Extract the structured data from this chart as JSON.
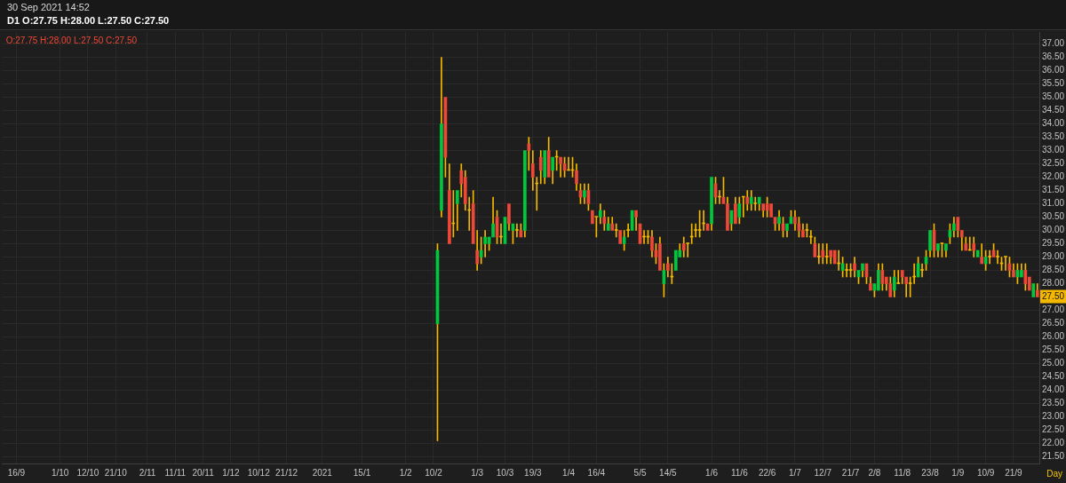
{
  "chart_data": {
    "type": "candlestick",
    "title": "30 Sep 2021 14:52",
    "subtitle": "D1 O:27.75 H:28.00 L:27.50 C:27.50",
    "categories": [
      null,
      null,
      null,
      "16/9",
      null,
      null,
      null,
      null,
      null,
      null,
      null,
      null,
      null,
      null,
      "1/10",
      null,
      null,
      null,
      null,
      null,
      null,
      "12/10",
      null,
      null,
      null,
      null,
      null,
      null,
      "21/10",
      null,
      null,
      null,
      null,
      null,
      null,
      null,
      "2/11",
      null,
      null,
      null,
      null,
      null,
      null,
      "11/11",
      null,
      null,
      null,
      null,
      null,
      null,
      "20/11",
      null,
      null,
      null,
      null,
      null,
      null,
      "1/12",
      null,
      null,
      null,
      null,
      null,
      null,
      "10/12",
      null,
      null,
      null,
      null,
      null,
      null,
      "21/12",
      null,
      null,
      null,
      null,
      null,
      null,
      null,
      null,
      "2021",
      null,
      null,
      null,
      null,
      null,
      null,
      null,
      null,
      null,
      "15/1",
      null,
      null,
      null,
      null,
      null,
      null,
      null,
      null,
      null,
      null,
      "1/2",
      null,
      null,
      null,
      null,
      null,
      null,
      "10/2",
      null,
      null,
      null,
      null,
      null,
      null,
      null,
      null,
      null,
      null,
      "1/3",
      null,
      null,
      null,
      null,
      null,
      null,
      "10/3",
      null,
      null,
      null,
      null,
      null,
      null,
      "19/3",
      null,
      null,
      null,
      null,
      null,
      null,
      null,
      null,
      "1/4",
      null,
      null,
      null,
      null,
      null,
      null,
      "16/4",
      null,
      null,
      null,
      null,
      null,
      null,
      null,
      null,
      null,
      null,
      "5/5",
      null,
      null,
      null,
      null,
      null,
      null,
      "14/5",
      null,
      null,
      null,
      null,
      null,
      null,
      null,
      null,
      null,
      null,
      "1/6",
      null,
      null,
      null,
      null,
      null,
      null,
      "11/6",
      null,
      null,
      null,
      null,
      null,
      null,
      "22/6",
      null,
      null,
      null,
      null,
      null,
      null,
      "1/7",
      null,
      null,
      null,
      null,
      null,
      null,
      "12/7",
      null,
      null,
      null,
      null,
      null,
      null,
      "21/7",
      null,
      null,
      null,
      null,
      null,
      "2/8",
      null,
      null,
      null,
      null,
      null,
      null,
      "11/8",
      null,
      null,
      null,
      null,
      null,
      null,
      "23/8",
      null,
      null,
      null,
      null,
      null,
      null,
      "1/9",
      null,
      null,
      null,
      null,
      null,
      null,
      "10/9",
      null,
      null,
      null,
      null,
      null,
      null,
      "21/9",
      null,
      null,
      null,
      null,
      null,
      null
    ],
    "series": [
      {
        "color": "#f5b800",
        "ohlc": [
          null,
          null,
          null,
          null,
          null,
          null,
          null,
          null,
          null,
          null,
          null,
          null,
          null,
          null,
          null,
          null,
          null,
          null,
          null,
          null,
          null,
          null,
          null,
          null,
          null,
          null,
          null,
          null,
          null,
          null,
          null,
          null,
          null,
          null,
          null,
          null,
          null,
          null,
          null,
          null,
          null,
          null,
          null,
          null,
          null,
          null,
          null,
          null,
          null,
          null,
          null,
          null,
          null,
          null,
          null,
          null,
          null,
          null,
          null,
          null,
          null,
          null,
          null,
          null,
          null,
          null,
          null,
          null,
          null,
          null,
          null,
          null,
          null,
          null,
          null,
          null,
          null,
          null,
          null,
          null,
          null,
          null,
          null,
          null,
          null,
          null,
          null,
          null,
          null,
          null,
          null,
          null,
          null,
          null,
          null,
          null,
          null,
          null,
          null,
          null,
          null,
          null,
          null,
          null,
          null,
          null,
          null,
          null,
          null,
          [
            26.5,
            29.5,
            22.1,
            29.25
          ],
          [
            30.75,
            36.5,
            30.5,
            34.0
          ],
          [
            35.0,
            35.0,
            32.0,
            32.75
          ],
          [
            31.5,
            32.5,
            29.5,
            29.5
          ],
          [
            30.25,
            31.5,
            29.75,
            30.25
          ],
          [
            31.0,
            31.5,
            30.0,
            31.5
          ],
          [
            32.25,
            32.5,
            31.25,
            31.75
          ],
          [
            32.0,
            32.25,
            30.75,
            31.0
          ],
          [
            30.75,
            31.25,
            30.0,
            30.75
          ],
          [
            31.0,
            31.5,
            29.5,
            29.5
          ],
          [
            29.25,
            30.0,
            28.5,
            28.75
          ],
          [
            29.0,
            29.75,
            28.75,
            29.25
          ],
          [
            29.5,
            30.0,
            29.0,
            29.75
          ],
          [
            29.5,
            29.75,
            29.25,
            29.75
          ],
          [
            29.75,
            31.25,
            29.75,
            30.25
          ],
          [
            30.5,
            30.75,
            29.5,
            29.75
          ],
          [
            29.75,
            30.25,
            29.5,
            29.75
          ],
          [
            29.5,
            30.5,
            29.5,
            30.5
          ],
          [
            31.0,
            31.0,
            30.0,
            30.25
          ],
          [
            30.0,
            30.25,
            29.5,
            30.25
          ],
          [
            30.0,
            30.25,
            29.75,
            30.0
          ],
          [
            30.0,
            30.25,
            29.75,
            29.75
          ],
          [
            30.0,
            33.0,
            29.75,
            33.0
          ],
          [
            33.25,
            33.5,
            32.25,
            33.0
          ],
          [
            32.5,
            33.0,
            31.5,
            32.0
          ],
          [
            31.75,
            32.0,
            30.75,
            31.75
          ],
          [
            32.75,
            33.0,
            31.75,
            32.25
          ],
          [
            32.0,
            33.0,
            31.75,
            33.0
          ],
          [
            33.0,
            33.5,
            32.0,
            32.0
          ],
          [
            32.25,
            32.75,
            31.75,
            32.75
          ],
          [
            32.75,
            33.0,
            32.25,
            32.75
          ],
          [
            32.75,
            32.75,
            32.0,
            32.5
          ],
          [
            32.5,
            32.75,
            32.0,
            32.25
          ],
          [
            32.25,
            32.75,
            32.25,
            32.25
          ],
          [
            32.25,
            32.75,
            32.0,
            32.25
          ],
          [
            32.25,
            32.5,
            31.5,
            31.75
          ],
          [
            31.5,
            31.75,
            31.0,
            31.25
          ],
          [
            31.25,
            31.75,
            31.0,
            31.5
          ],
          [
            31.5,
            31.75,
            30.75,
            31.0
          ],
          [
            30.75,
            30.75,
            30.25,
            30.25
          ],
          [
            30.5,
            30.5,
            29.75,
            30.5
          ],
          [
            30.5,
            31.0,
            30.25,
            30.75
          ],
          [
            30.5,
            30.75,
            30.0,
            30.25
          ],
          [
            30.0,
            30.5,
            30.0,
            30.25
          ],
          [
            30.25,
            30.5,
            30.0,
            30.0
          ],
          [
            30.0,
            30.25,
            29.75,
            30.0
          ],
          [
            30.0,
            30.0,
            29.5,
            29.5
          ],
          [
            29.5,
            30.0,
            29.25,
            29.75
          ],
          [
            30.0,
            30.25,
            29.75,
            30.0
          ],
          [
            30.0,
            30.75,
            30.0,
            30.75
          ],
          [
            30.75,
            30.75,
            30.0,
            30.5
          ],
          [
            30.25,
            30.25,
            29.5,
            29.5
          ],
          [
            29.75,
            30.0,
            29.5,
            29.75
          ],
          [
            29.75,
            30.0,
            29.5,
            29.75
          ],
          [
            29.75,
            30.0,
            29.0,
            29.25
          ],
          [
            29.25,
            29.5,
            28.75,
            29.0
          ],
          [
            29.5,
            29.75,
            28.5,
            28.5
          ],
          [
            28.0,
            28.75,
            27.5,
            28.5
          ],
          [
            28.75,
            29.0,
            28.25,
            28.5
          ],
          [
            28.25,
            28.75,
            28.0,
            28.25
          ],
          [
            28.5,
            29.25,
            28.5,
            29.25
          ],
          [
            29.0,
            29.5,
            29.0,
            29.25
          ],
          [
            29.5,
            29.75,
            29.0,
            29.25
          ],
          [
            29.5,
            29.5,
            29.0,
            29.5
          ],
          [
            29.75,
            30.25,
            29.5,
            29.75
          ],
          [
            30.0,
            30.25,
            29.75,
            30.0
          ],
          [
            30.0,
            30.75,
            29.75,
            30.0
          ],
          [
            30.25,
            30.75,
            30.0,
            30.25
          ],
          [
            30.25,
            30.25,
            30.0,
            30.0
          ],
          [
            30.25,
            32.0,
            30.0,
            32.0
          ],
          [
            31.75,
            32.0,
            31.0,
            31.25
          ],
          [
            31.25,
            31.5,
            31.0,
            31.25
          ],
          [
            31.25,
            32.0,
            31.0,
            31.0
          ],
          [
            31.0,
            31.25,
            30.0,
            30.0
          ],
          [
            30.25,
            30.75,
            30.0,
            30.75
          ],
          [
            31.0,
            31.25,
            30.25,
            30.25
          ],
          [
            30.5,
            31.25,
            30.25,
            31.0
          ],
          [
            31.25,
            31.25,
            30.5,
            31.25
          ],
          [
            31.25,
            31.5,
            30.75,
            31.0
          ],
          [
            31.0,
            31.5,
            30.75,
            31.25
          ],
          [
            31.0,
            31.25,
            30.75,
            31.0
          ],
          [
            31.0,
            31.25,
            30.75,
            31.25
          ],
          [
            31.0,
            31.0,
            30.5,
            30.75
          ],
          [
            31.0,
            31.25,
            30.5,
            30.75
          ],
          [
            31.0,
            31.0,
            30.5,
            30.5
          ],
          [
            30.5,
            30.5,
            30.0,
            30.25
          ],
          [
            30.25,
            30.75,
            30.0,
            30.5
          ],
          [
            30.25,
            30.5,
            29.75,
            30.0
          ],
          [
            30.0,
            30.25,
            29.75,
            30.25
          ],
          [
            30.25,
            30.75,
            30.25,
            30.5
          ],
          [
            30.5,
            30.75,
            30.0,
            30.25
          ],
          [
            30.25,
            30.5,
            29.75,
            30.0
          ],
          [
            30.0,
            30.25,
            29.75,
            29.75
          ],
          [
            30.0,
            30.25,
            29.75,
            30.0
          ],
          [
            29.75,
            30.0,
            29.5,
            29.75
          ],
          [
            29.5,
            29.75,
            29.0,
            29.0
          ],
          [
            29.0,
            29.5,
            28.75,
            29.0
          ],
          [
            29.25,
            29.5,
            28.75,
            29.0
          ],
          [
            29.0,
            29.5,
            28.75,
            29.0
          ],
          [
            29.25,
            29.25,
            28.75,
            29.0
          ],
          [
            29.25,
            29.25,
            28.75,
            28.75
          ],
          [
            28.75,
            29.25,
            28.5,
            28.75
          ],
          [
            28.5,
            29.0,
            28.25,
            28.75
          ],
          [
            28.5,
            28.75,
            28.25,
            28.5
          ],
          [
            28.5,
            28.75,
            28.25,
            28.5
          ],
          [
            28.75,
            29.0,
            28.25,
            28.5
          ],
          [
            28.25,
            28.5,
            28.0,
            28.5
          ],
          [
            28.5,
            28.75,
            28.25,
            28.75
          ],
          [
            28.75,
            28.75,
            28.0,
            28.25
          ],
          [
            28.0,
            28.25,
            27.75,
            27.75
          ],
          [
            27.75,
            28.0,
            27.5,
            28.0
          ],
          [
            27.75,
            28.75,
            27.75,
            28.5
          ],
          [
            28.5,
            28.75,
            27.75,
            28.0
          ],
          [
            28.25,
            28.25,
            27.75,
            28.0
          ],
          [
            28.0,
            28.25,
            27.5,
            27.5
          ],
          [
            27.75,
            28.5,
            27.5,
            28.25
          ],
          [
            28.0,
            28.5,
            28.0,
            28.0
          ],
          [
            28.5,
            28.5,
            28.0,
            28.25
          ],
          [
            28.25,
            28.25,
            27.5,
            28.0
          ],
          [
            28.0,
            28.25,
            27.5,
            28.0
          ],
          [
            28.25,
            28.75,
            28.0,
            28.25
          ],
          [
            28.25,
            29.0,
            28.25,
            28.75
          ],
          [
            28.5,
            28.75,
            28.25,
            28.5
          ],
          [
            28.75,
            29.25,
            28.5,
            29.0
          ],
          [
            29.25,
            30.0,
            29.0,
            30.0
          ],
          [
            30.0,
            30.25,
            29.0,
            29.25
          ],
          [
            29.25,
            29.5,
            29.0,
            29.5
          ],
          [
            29.5,
            29.5,
            29.0,
            29.5
          ],
          [
            29.25,
            29.5,
            29.0,
            29.5
          ],
          [
            29.75,
            30.25,
            29.5,
            30.0
          ],
          [
            30.0,
            30.5,
            29.75,
            30.25
          ],
          [
            30.5,
            30.5,
            29.75,
            30.0
          ],
          [
            30.0,
            30.0,
            29.25,
            29.75
          ],
          [
            29.5,
            29.75,
            29.25,
            29.25
          ],
          [
            29.25,
            29.75,
            29.25,
            29.25
          ],
          [
            29.5,
            29.75,
            29.0,
            29.25
          ],
          [
            29.0,
            29.25,
            29.0,
            29.25
          ],
          [
            29.0,
            29.5,
            28.75,
            28.75
          ],
          [
            28.75,
            29.25,
            28.5,
            29.0
          ],
          [
            29.0,
            29.25,
            28.75,
            29.0
          ],
          [
            29.25,
            29.5,
            29.0,
            29.0
          ],
          [
            29.0,
            29.25,
            28.75,
            29.0
          ],
          [
            28.75,
            29.0,
            28.5,
            28.75
          ],
          [
            29.0,
            29.0,
            28.5,
            29.0
          ],
          [
            28.75,
            29.0,
            28.25,
            28.5
          ],
          [
            28.5,
            28.75,
            28.25,
            28.25
          ],
          [
            28.25,
            28.75,
            28.0,
            28.5
          ],
          [
            28.25,
            28.75,
            28.25,
            28.5
          ],
          [
            28.5,
            28.75,
            27.75,
            28.0
          ],
          [
            28.25,
            28.25,
            27.75,
            27.75
          ],
          [
            27.5,
            28.0,
            27.5,
            28.0
          ],
          [
            27.75,
            28.0,
            27.5,
            27.5
          ]
        ],
        "colors": [
          null,
          null,
          null,
          null,
          null,
          null,
          null,
          null,
          null,
          null,
          null,
          null,
          null,
          null,
          null,
          null,
          null,
          null,
          null,
          null,
          null,
          null,
          null,
          null,
          null,
          null,
          null,
          null,
          null,
          null,
          null,
          null,
          null,
          null,
          null,
          null,
          null,
          null,
          null,
          null,
          null,
          null,
          null,
          null,
          null,
          null,
          null,
          null,
          null,
          null,
          null,
          null,
          null,
          null,
          null,
          null,
          null,
          null,
          null,
          null,
          null,
          null,
          null,
          null,
          null,
          null,
          null,
          null,
          null,
          null,
          null,
          null,
          null,
          null,
          null,
          null,
          null,
          null,
          null,
          null,
          null,
          null,
          null,
          null,
          null,
          null,
          null,
          null,
          null,
          null,
          null,
          null,
          null,
          null,
          null,
          null,
          null,
          null,
          null,
          null,
          null,
          null,
          null,
          null,
          null,
          null,
          null,
          null,
          null,
          "#00c83c",
          "#00c83c",
          "#ef4836",
          "#ef4836",
          "#f5b800",
          "#00c83c",
          "#ef4836",
          "#ef4836",
          "#f5b800",
          "#ef4836",
          "#ef4836",
          "#00c83c",
          "#00c83c",
          "#00c83c",
          "#00c83c",
          "#ef4836",
          "#f5b800",
          "#00c83c",
          "#ef4836",
          "#00c83c",
          "#f5b800",
          "#ef4836",
          "#00c83c",
          "#ef4836",
          "#ef4836",
          "#f5b800",
          "#ef4836",
          "#00c83c",
          "#ef4836",
          "#00c83c",
          "#f5b800",
          "#ef4836",
          "#ef4836",
          "#f5b800",
          "#f5b800",
          "#ef4836",
          "#ef4836",
          "#00c83c",
          "#ef4836",
          "#ef4836",
          "#f5b800",
          "#00c83c",
          "#ef4836",
          "#00c83c",
          "#ef4836",
          "#f5b800",
          "#ef4836",
          "#00c83c",
          "#f5b800",
          "#00c83c",
          "#ef4836",
          "#ef4836",
          "#f5b800",
          "#f5b800",
          "#ef4836",
          "#ef4836",
          "#ef4836",
          "#00c83c",
          "#ef4836",
          "#f5b800",
          "#00c83c",
          "#00c83c",
          "#ef4836",
          "#f5b800",
          "#f5b800",
          "#f5b800",
          "#f5b800",
          "#f5b800",
          "#ef4836",
          "#00c83c",
          "#ef4836",
          "#f5b800",
          "#ef4836",
          "#ef4836",
          "#00c83c",
          "#ef4836",
          "#00c83c",
          "#f5b800",
          "#ef4836",
          "#00c83c",
          "#f5b800",
          "#00c83c",
          "#ef4836",
          "#ef4836",
          "#ef4836",
          "#ef4836",
          "#00c83c",
          "#ef4836",
          "#00c83c",
          "#00c83c",
          "#ef4836",
          "#ef4836",
          "#ef4836",
          "#f5b800",
          "#f5b800",
          "#ef4836",
          "#f5b800",
          "#ef4836",
          "#f5b800",
          "#ef4836",
          "#ef4836",
          "#f5b800",
          "#00c83c",
          "#f5b800",
          "#f5b800",
          "#ef4836",
          "#00c83c",
          "#00c83c",
          "#ef4836",
          "#ef4836",
          "#00c83c",
          "#00c83c",
          "#ef4836",
          "#ef4836",
          "#ef4836",
          "#00c83c",
          "#f5b800",
          "#ef4836",
          "#ef4836",
          "#f5b800",
          "#f5b800",
          "#00c83c",
          "#f5b800",
          "#00c83c",
          "#00c83c",
          "#ef4836",
          "#00c83c",
          "#f5b800",
          "#00c83c",
          "#00c83c",
          "#00c83c",
          "#ef4836",
          "#ef4836",
          "#ef4836",
          "#f5b800",
          "#ef4836",
          "#00c83c",
          "#ef4836",
          "#00c83c",
          "#f5b800",
          "#ef4836",
          "#f5b800",
          "#f5b800",
          "#f5b800",
          "#ef4836",
          "#ef4836",
          "#00c83c",
          "#00c83c",
          "#ef4836",
          "#ef4836",
          "#00c83c",
          "#ef4836"
        ]
      }
    ],
    "ylim": [
      21.25,
      37.45
    ],
    "yticks": [
      {
        "value": 21.5,
        "label": "21.50"
      },
      {
        "value": 22,
        "label": "22.00"
      },
      {
        "value": 22.5,
        "label": "22.50"
      },
      {
        "value": 23,
        "label": "23.00"
      },
      {
        "value": 23.5,
        "label": "23.50"
      },
      {
        "value": 24,
        "label": "24.00"
      },
      {
        "value": 24.5,
        "label": "24.50"
      },
      {
        "value": 25,
        "label": "25.00"
      },
      {
        "value": 25.5,
        "label": "25.50"
      },
      {
        "value": 26,
        "label": "26.00"
      },
      {
        "value": 26.5,
        "label": "26.50"
      },
      {
        "value": 27,
        "label": "27.00"
      },
      {
        "value": 27.5,
        "label": "27.50"
      },
      {
        "value": 28,
        "label": "28.00"
      },
      {
        "value": 28.5,
        "label": "28.50"
      },
      {
        "value": 29,
        "label": "29.00"
      },
      {
        "value": 29.5,
        "label": "29.50"
      },
      {
        "value": 30,
        "label": "30.00"
      },
      {
        "value": 30.5,
        "label": "30.50"
      },
      {
        "value": 31,
        "label": "31.00"
      },
      {
        "value": 31.5,
        "label": "31.50"
      },
      {
        "value": 32,
        "label": "32.00"
      },
      {
        "value": 32.5,
        "label": "32.50"
      },
      {
        "value": 33,
        "label": "33.00"
      },
      {
        "value": 33.5,
        "label": "33.50"
      },
      {
        "value": 34,
        "label": "34.00"
      },
      {
        "value": 34.5,
        "label": "34.50"
      },
      {
        "value": 35,
        "label": "35.00"
      },
      {
        "value": 35.5,
        "label": "35.50"
      },
      {
        "value": 36,
        "label": "36.00"
      },
      {
        "value": 36.5,
        "label": "36.50"
      },
      {
        "value": 37,
        "label": "37.00"
      }
    ],
    "grid": true,
    "annotations": [
      "O:27.75 H:28.00 L:27.50 C:27.50",
      "Day"
    ]
  }
}
